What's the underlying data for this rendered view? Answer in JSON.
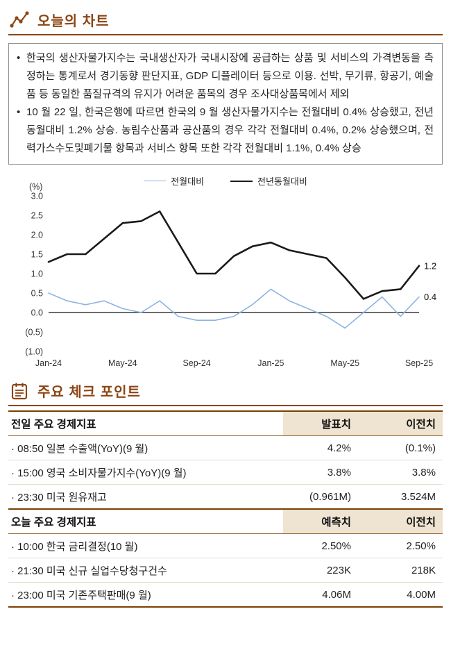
{
  "accent_color": "#8B4513",
  "marks": {
    "bullet": "•"
  },
  "sections": {
    "chart": {
      "title": "오늘의 차트"
    },
    "checkpoints": {
      "title": "주요 체크 포인트"
    }
  },
  "bullets": [
    "한국의 생산자물가지수는 국내생산자가 국내시장에 공급하는 상품 및 서비스의 가격변동을 측정하는 통계로서 경기동향 판단지표, GDP 디플레이터 등으로 이용. 선박, 무기류, 항공기, 예술품 등 동일한 품질규격의 유지가 어려운 품목의 경우 조사대상품목에서 제외",
    "10 월 22 일, 한국은행에 따르면 한국의 9 월 생산자물가지수는 전월대비 0.4% 상승했고, 전년동월대비 1.2% 상승. 농림수산품과 공산품의 경우 각각 전월대비 0.4%, 0.2% 상승했으며, 전력가스수도및폐기물 항목과 서비스 항목 또한 각각 전월대비 1.1%, 0.4% 상승"
  ],
  "chart_data": {
    "type": "line",
    "unit_label": "(%)",
    "ylim": [
      -1.0,
      3.0
    ],
    "zero_line_color": "#3a3a3a",
    "y_ticks": [
      {
        "label": "3.0",
        "value": 3.0
      },
      {
        "label": "2.5",
        "value": 2.5
      },
      {
        "label": "2.0",
        "value": 2.0
      },
      {
        "label": "1.5",
        "value": 1.5
      },
      {
        "label": "1.0",
        "value": 1.0
      },
      {
        "label": "0.5",
        "value": 0.5
      },
      {
        "label": "0.0",
        "value": 0.0
      },
      {
        "label": "(0.5)",
        "value": -0.5
      },
      {
        "label": "(1.0)",
        "value": -1.0
      }
    ],
    "x": [
      "Jan-24",
      "Feb-24",
      "Mar-24",
      "Apr-24",
      "May-24",
      "Jun-24",
      "Jul-24",
      "Aug-24",
      "Sep-24",
      "Oct-24",
      "Nov-24",
      "Dec-24",
      "Jan-25",
      "Feb-25",
      "Mar-25",
      "Apr-25",
      "May-25",
      "Jun-25",
      "Jul-25",
      "Aug-25",
      "Sep-25"
    ],
    "x_ticks": [
      "Jan-24",
      "May-24",
      "Sep-24",
      "Jan-25",
      "May-25",
      "Sep-25"
    ],
    "series": [
      {
        "name": "전월대비",
        "color": "#8DB4E2",
        "stroke_width": 1.6,
        "end_label": "0.4",
        "values": [
          0.5,
          0.3,
          0.2,
          0.3,
          0.1,
          0.0,
          0.3,
          -0.1,
          -0.2,
          -0.2,
          -0.1,
          0.2,
          0.6,
          0.3,
          0.1,
          -0.1,
          -0.4,
          0.0,
          0.4,
          -0.1,
          0.4
        ]
      },
      {
        "name": "전년동월대비",
        "color": "#1A1A1A",
        "stroke_width": 2.6,
        "end_label": "1.2",
        "values": [
          1.3,
          1.5,
          1.5,
          1.9,
          2.3,
          2.35,
          2.6,
          1.8,
          1.0,
          1.0,
          1.45,
          1.7,
          1.8,
          1.6,
          1.5,
          1.4,
          0.9,
          0.35,
          0.55,
          0.6,
          1.2
        ]
      }
    ]
  },
  "table": {
    "sections": [
      {
        "header": {
          "label": "전일 주요 경제지표",
          "col1": "발표치",
          "col2": "이전치"
        },
        "rows": [
          {
            "label": "· 08:50 일본 수출액(YoY)(9 월)",
            "col1": "4.2%",
            "col2": "(0.1%)"
          },
          {
            "label": "· 15:00 영국 소비자물가지수(YoY)(9 월)",
            "col1": "3.8%",
            "col2": "3.8%"
          },
          {
            "label": "· 23:30 미국 원유재고",
            "col1": "(0.961M)",
            "col2": "3.524M"
          }
        ]
      },
      {
        "header": {
          "label": "오늘 주요 경제지표",
          "col1": "예측치",
          "col2": "이전치"
        },
        "rows": [
          {
            "label": "· 10:00 한국 금리결정(10 월)",
            "col1": "2.50%",
            "col2": "2.50%"
          },
          {
            "label": "· 21:30 미국 신규 실업수당청구건수",
            "col1": "223K",
            "col2": "218K"
          },
          {
            "label": "· 23:00 미국 기존주택판매(9 월)",
            "col1": "4.06M",
            "col2": "4.00M"
          }
        ]
      }
    ]
  }
}
